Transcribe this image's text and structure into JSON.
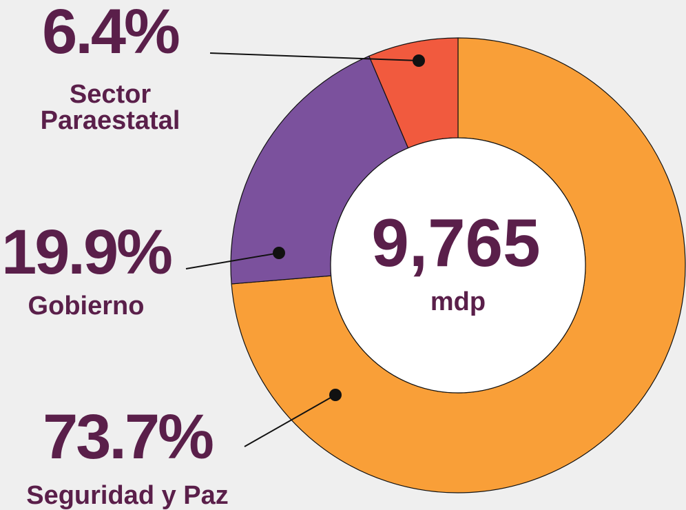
{
  "chart_data": {
    "type": "donut",
    "categories": [
      "Seguridad y Paz",
      "Gobierno",
      "Sector Paraestatal"
    ],
    "values": [
      73.7,
      19.9,
      6.4
    ],
    "value_labels": [
      "73.7%",
      "19.9%",
      "6.4%"
    ],
    "colors": [
      "#f99f38",
      "#7b519d",
      "#f15a3e"
    ],
    "center_label": "9,765",
    "center_sublabel": "mdp"
  }
}
